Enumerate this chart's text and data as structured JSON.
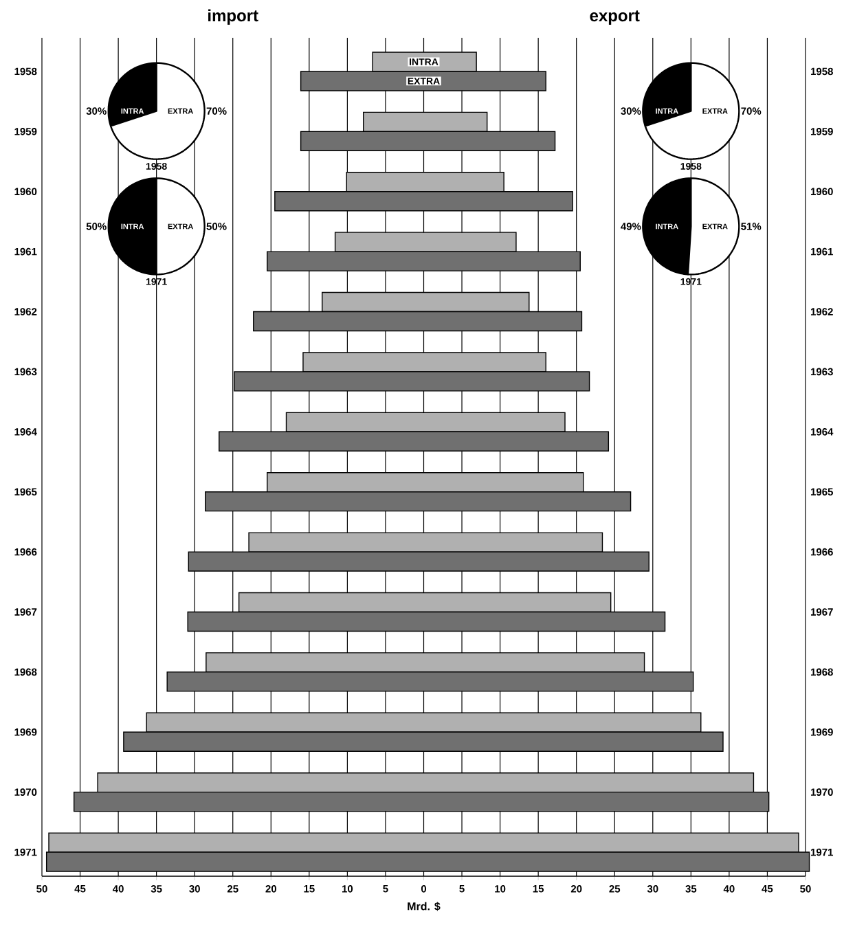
{
  "chart_data": [
    {
      "type": "bar",
      "orientation": "horizontal",
      "xlabel": "Mrd. $",
      "annotations": [
        "import",
        "export"
      ],
      "categories": [
        "1958",
        "1959",
        "1960",
        "1961",
        "1962",
        "1963",
        "1964",
        "1965",
        "1966",
        "1967",
        "1968",
        "1969",
        "1970",
        "1971"
      ],
      "series": [
        {
          "name": "INTRA",
          "color": "#b0b0b0",
          "base": [
            -6.7,
            -7.9,
            -10.1,
            -11.6,
            -13.3,
            -15.8,
            -18.0,
            -20.5,
            -22.9,
            -24.2,
            -28.5,
            -36.3,
            -42.7,
            -49.1
          ],
          "values": [
            13.6,
            16.2,
            20.6,
            23.7,
            27.1,
            31.8,
            36.5,
            41.4,
            46.3,
            48.7,
            57.4,
            72.6,
            85.9,
            98.2
          ]
        },
        {
          "name": "EXTRA",
          "color": "#707070",
          "base": [
            -16.1,
            -16.1,
            -19.5,
            -20.5,
            -22.3,
            -24.8,
            -26.8,
            -28.6,
            -30.8,
            -30.9,
            -33.6,
            -39.3,
            -45.8,
            -49.4
          ],
          "values": [
            32.1,
            33.3,
            39.0,
            41.0,
            43.0,
            46.5,
            51.0,
            55.7,
            60.3,
            62.5,
            68.9,
            78.5,
            91.0,
            99.9
          ]
        }
      ],
      "xlim": [
        -50,
        50
      ],
      "xticks": [
        {
          "value": -50,
          "label": "50"
        },
        {
          "value": -45,
          "label": "45"
        },
        {
          "value": -40,
          "label": "40"
        },
        {
          "value": -35,
          "label": "35"
        },
        {
          "value": -30,
          "label": "30"
        },
        {
          "value": -25,
          "label": "25"
        },
        {
          "value": -20,
          "label": "20"
        },
        {
          "value": -15,
          "label": "15"
        },
        {
          "value": -10,
          "label": "10"
        },
        {
          "value": -5,
          "label": "5"
        },
        0,
        5,
        10,
        15,
        20,
        25,
        30,
        35,
        40,
        45,
        50
      ],
      "grid": "x"
    },
    {
      "type": "pie",
      "title": "1958",
      "categories": [
        "INTRA",
        "EXTRA"
      ],
      "values": [
        30,
        70
      ],
      "colors": [
        "#000000",
        "#ffffff"
      ],
      "value_labels": [
        "30%",
        "70%"
      ]
    },
    {
      "type": "pie",
      "title": "1958",
      "categories": [
        "INTRA",
        "EXTRA"
      ],
      "values": [
        30,
        70
      ],
      "colors": [
        "#000000",
        "#ffffff"
      ],
      "value_labels": [
        "30%",
        "70%"
      ]
    },
    {
      "type": "pie",
      "title": "1971",
      "categories": [
        "INTRA",
        "EXTRA"
      ],
      "values": [
        50,
        50
      ],
      "colors": [
        "#000000",
        "#ffffff"
      ],
      "value_labels": [
        "50%",
        "50%"
      ]
    },
    {
      "type": "pie",
      "title": "1971",
      "categories": [
        "INTRA",
        "EXTRA"
      ],
      "values": [
        49,
        51
      ],
      "colors": [
        "#000000",
        "#ffffff"
      ],
      "value_labels": [
        "49%",
        "51%"
      ]
    }
  ]
}
